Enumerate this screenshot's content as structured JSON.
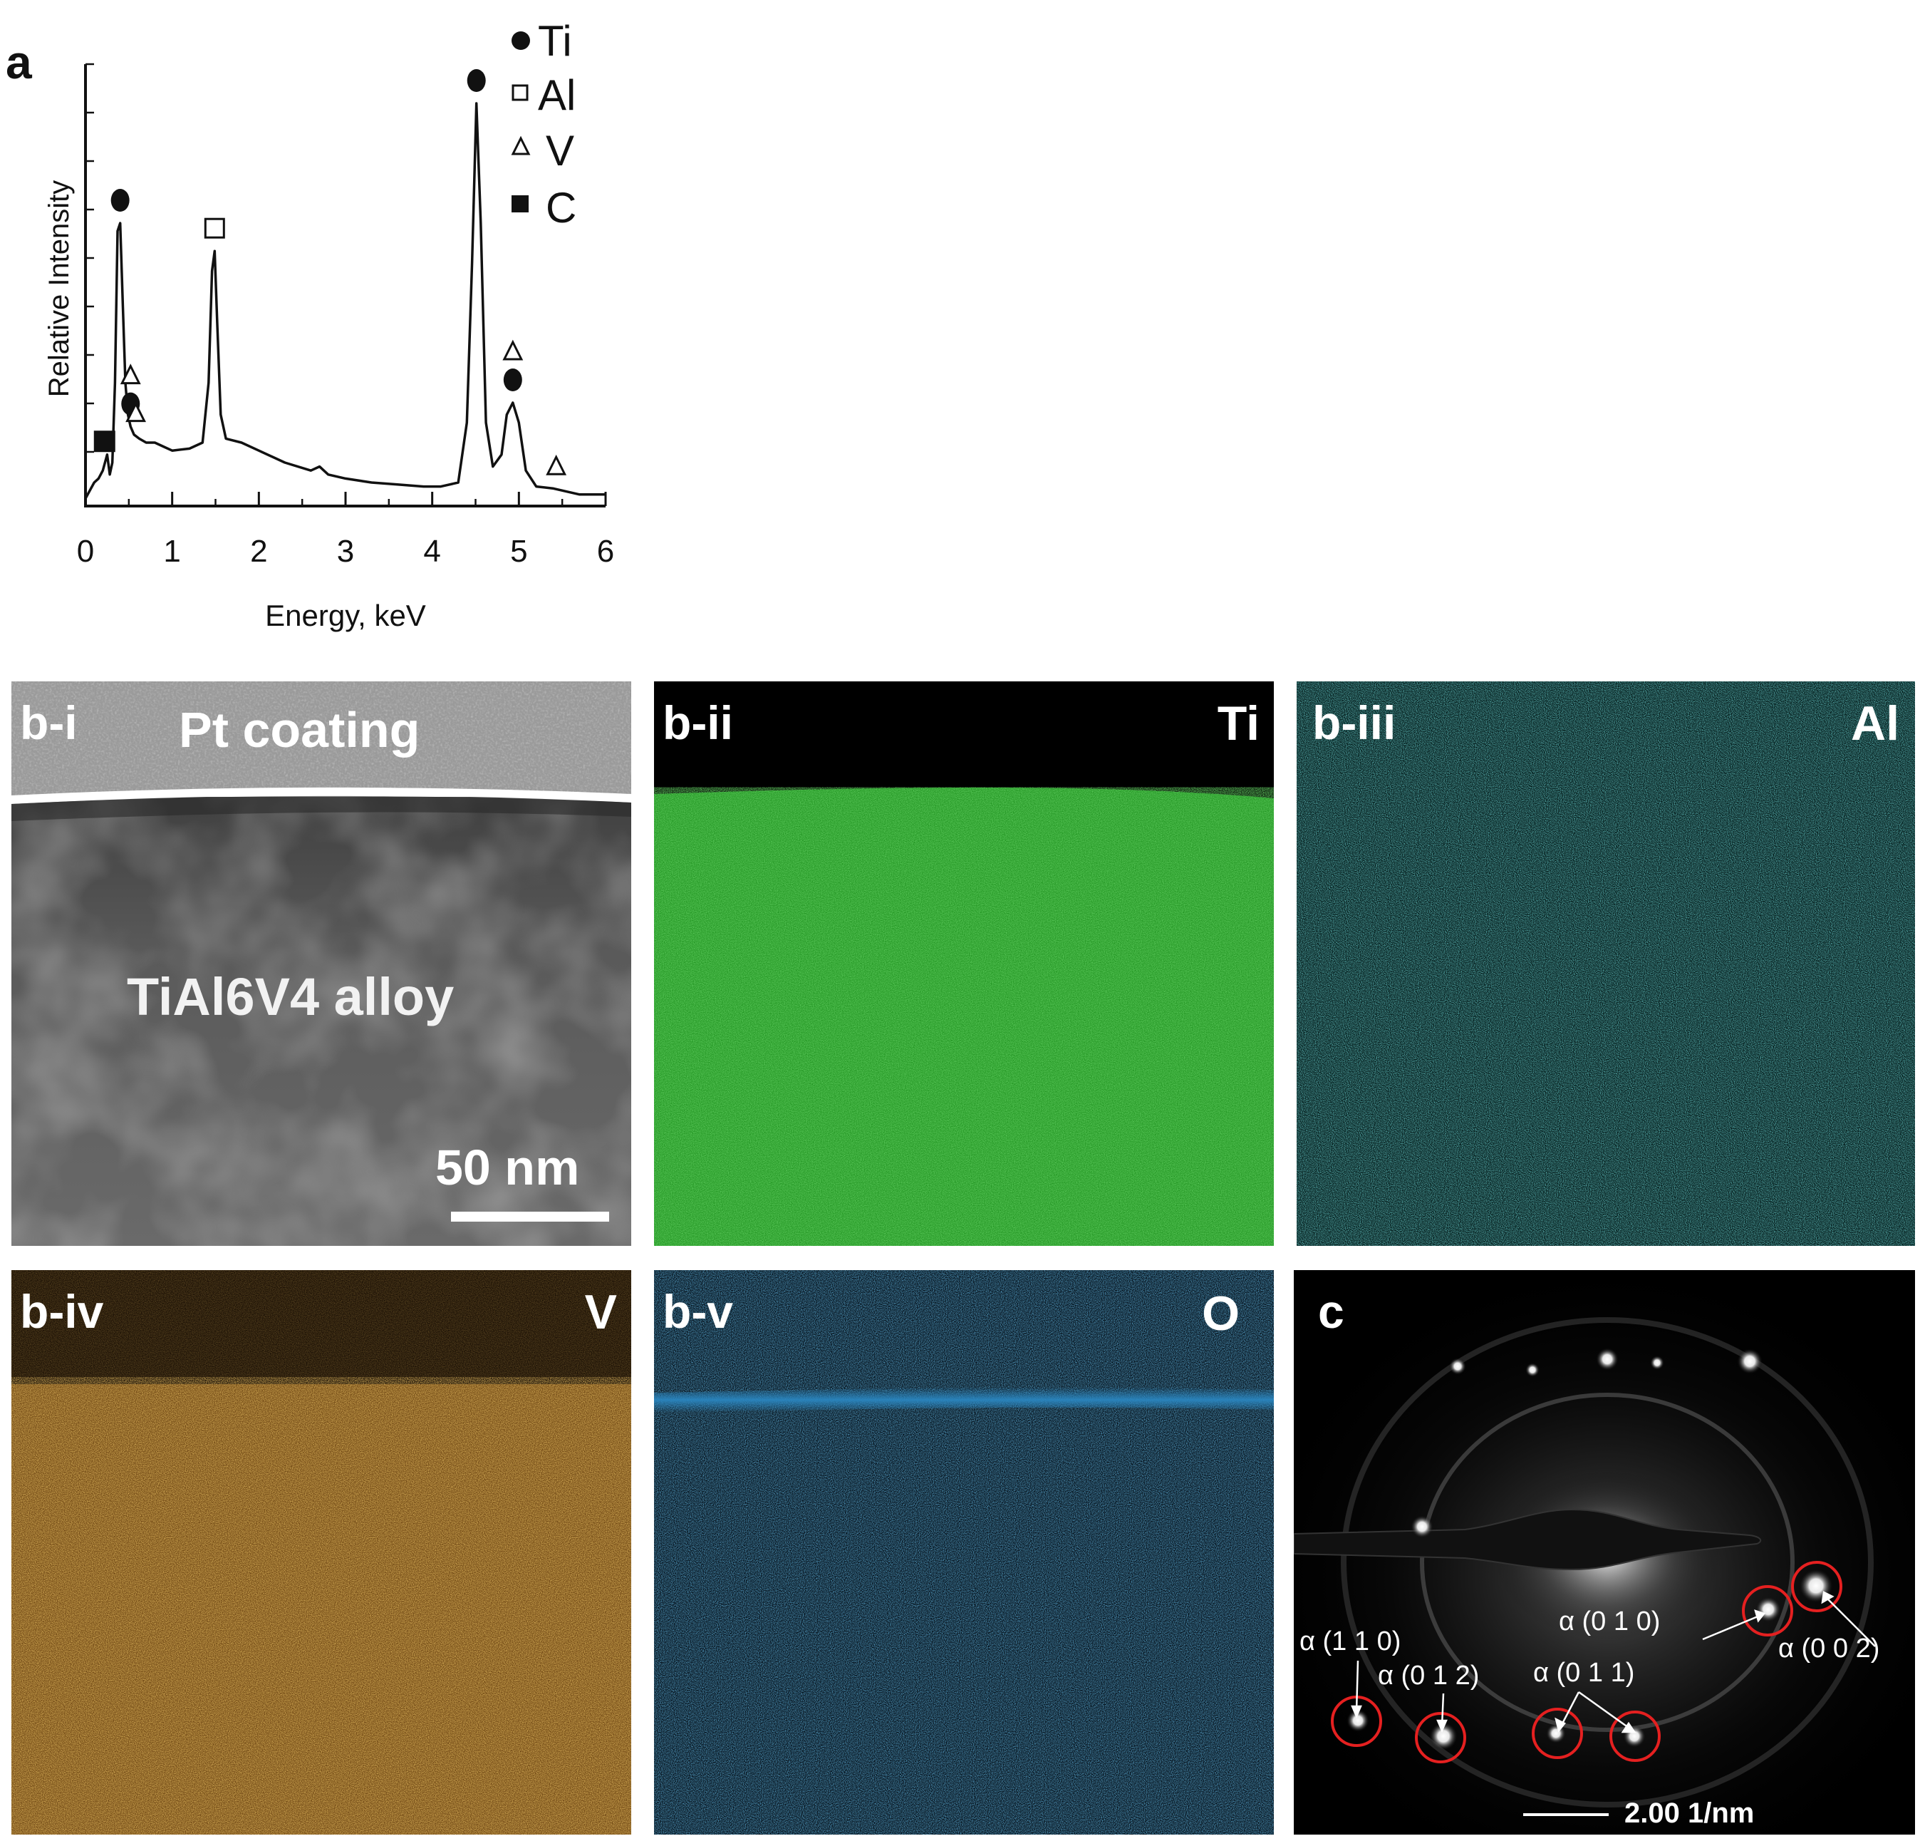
{
  "panel_a": {
    "label": "a",
    "chart_data": {
      "type": "line",
      "title": "",
      "xlabel": "Energy, keV",
      "ylabel": "Relative Intensity",
      "xlim": [
        0,
        6
      ],
      "x_ticks": [
        "0",
        "1",
        "2",
        "3",
        "4",
        "5",
        "6"
      ],
      "y_ticks_labeled": false,
      "grid": false,
      "legend_position": "top-right",
      "legend": [
        {
          "marker": "filled-circle",
          "label": "Ti"
        },
        {
          "marker": "open-square",
          "label": "Al"
        },
        {
          "marker": "open-triangle",
          "label": "V"
        },
        {
          "marker": "filled-square",
          "label": "C"
        }
      ],
      "series": [
        {
          "x": [
            0.0,
            0.05,
            0.1,
            0.15,
            0.2,
            0.25,
            0.28,
            0.31,
            0.34,
            0.37,
            0.4,
            0.43,
            0.46,
            0.49,
            0.52,
            0.56,
            0.62,
            0.7,
            0.8,
            0.9,
            1.0,
            1.2,
            1.35,
            1.42,
            1.46,
            1.49,
            1.52,
            1.56,
            1.62,
            1.8,
            2.0,
            2.3,
            2.6,
            2.7,
            2.8,
            3.0,
            3.3,
            3.6,
            3.9,
            4.1,
            4.3,
            4.4,
            4.46,
            4.51,
            4.56,
            4.62,
            4.7,
            4.8,
            4.86,
            4.93,
            5.0,
            5.08,
            5.2,
            5.4,
            5.7,
            6.0
          ],
          "y": [
            0.01,
            0.03,
            0.05,
            0.06,
            0.08,
            0.12,
            0.07,
            0.1,
            0.3,
            0.68,
            0.7,
            0.5,
            0.3,
            0.22,
            0.19,
            0.17,
            0.16,
            0.15,
            0.15,
            0.14,
            0.13,
            0.135,
            0.15,
            0.3,
            0.58,
            0.63,
            0.45,
            0.22,
            0.16,
            0.15,
            0.13,
            0.1,
            0.08,
            0.09,
            0.07,
            0.06,
            0.05,
            0.045,
            0.04,
            0.04,
            0.05,
            0.2,
            0.6,
            1.0,
            0.7,
            0.2,
            0.09,
            0.12,
            0.22,
            0.25,
            0.2,
            0.08,
            0.04,
            0.035,
            0.02,
            0.02
          ]
        }
      ],
      "peak_markers": [
        {
          "element": "C",
          "marker": "filled-square",
          "x": 0.22
        },
        {
          "element": "Ti",
          "marker": "filled-circle",
          "x": 0.4
        },
        {
          "element": "Ti",
          "marker": "filled-circle",
          "x": 0.52
        },
        {
          "element": "V",
          "marker": "open-triangle",
          "x": 0.52
        },
        {
          "element": "V",
          "marker": "open-triangle",
          "x": 0.58
        },
        {
          "element": "Al",
          "marker": "open-square",
          "x": 1.49
        },
        {
          "element": "Ti",
          "marker": "filled-circle",
          "x": 4.51
        },
        {
          "element": "Ti",
          "marker": "filled-circle",
          "x": 4.93
        },
        {
          "element": "V",
          "marker": "open-triangle",
          "x": 4.93
        },
        {
          "element": "V",
          "marker": "open-triangle",
          "x": 5.43
        }
      ]
    }
  },
  "panels_b": {
    "bi": {
      "label": "b-i",
      "top_text": "Pt coating",
      "center_text": "TiAl6V4 alloy",
      "scale_bar": "50 nm"
    },
    "bii": {
      "label": "b-ii",
      "element": "Ti",
      "color": "#1fa81f"
    },
    "biii": {
      "label": "b-iii",
      "element": "Al",
      "color": "#1b8a8a"
    },
    "biv": {
      "label": "b-iv",
      "element": "V",
      "color": "#c07a1a"
    },
    "bv": {
      "label": "b-v",
      "element": "O",
      "color": "#1a6ea8"
    }
  },
  "panel_c": {
    "label": "c",
    "scale_bar": "2.00 1/nm",
    "spots": [
      {
        "label": "α (1 1 0)"
      },
      {
        "label": "α (0 1 2)"
      },
      {
        "label": "α (0 1 1)"
      },
      {
        "label": "α (0 1 0)"
      },
      {
        "label": "α (0 0 2)"
      }
    ]
  }
}
